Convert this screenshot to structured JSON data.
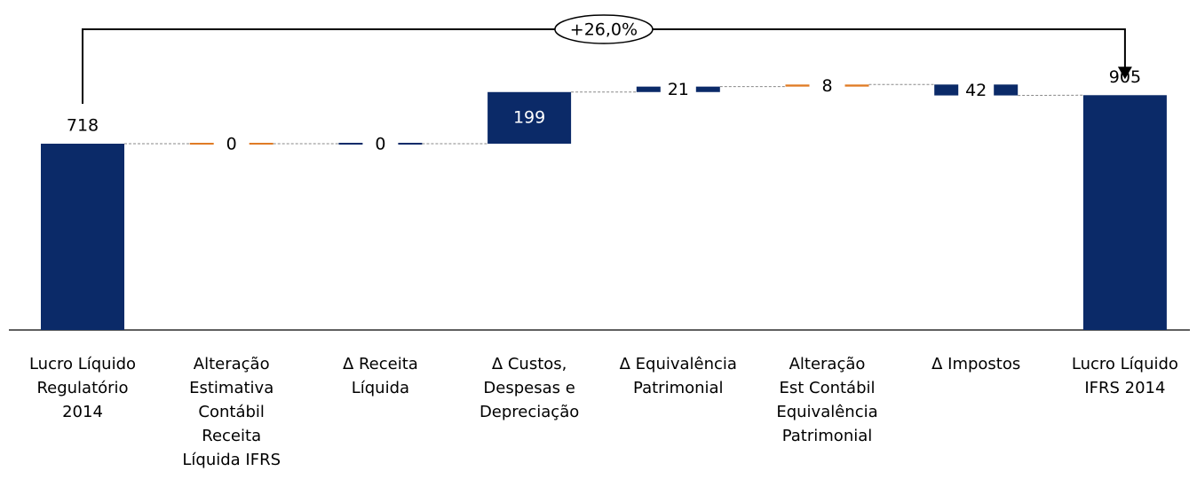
{
  "chart_data": {
    "type": "waterfall",
    "categories": [
      "Lucro Líquido\nRegulatório\n2014",
      "Alteração\nEstimativa\nContábil\nReceita\nLíquida IFRS",
      "Δ Receita\nLíquida",
      "Δ Custos,\nDespesas e\nDepreciação",
      "Δ Equivalência\nPatrimonial",
      "Alteração\nEst Contábil\nEquivalência\nPatrimonial",
      "Δ Impostos",
      "Lucro Líquido\nIFRS 2014"
    ],
    "values": [
      718,
      0,
      0,
      199,
      21,
      8,
      -42,
      905
    ],
    "value_labels": [
      "718",
      "0",
      "0",
      "199",
      "21",
      "8",
      "42",
      "905"
    ],
    "colors": [
      "#0b2a68",
      "#e07b24",
      "#0b2a68",
      "#0b2a68",
      "#0b2a68",
      "#e07b24",
      "#0b2a68",
      "#0b2a68"
    ],
    "annotation": "+26,0%"
  }
}
